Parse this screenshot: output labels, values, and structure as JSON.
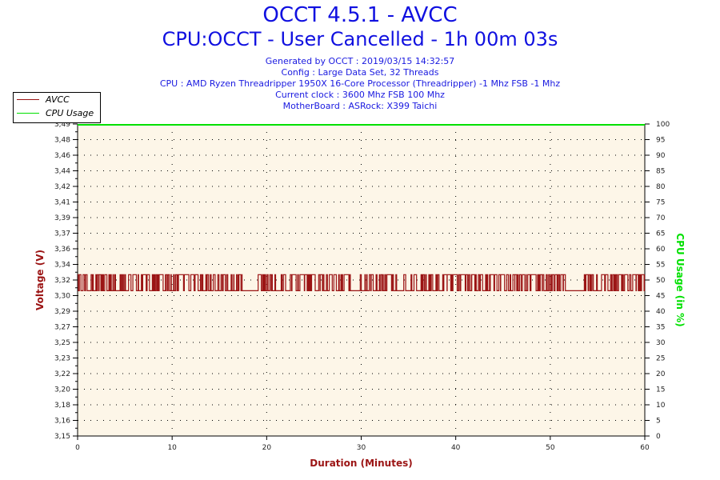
{
  "header": {
    "title": "OCCT 4.5.1 - AVCC",
    "subtitle": "CPU:OCCT - User Cancelled - 1h 00m 03s",
    "info": [
      "Generated by OCCT : 2019/03/15 14:32:57",
      "Config : Large Data Set, 32 Threads",
      "CPU : AMD Ryzen Threadripper 1950X 16-Core Processor (Threadripper) -1 Mhz FSB -1 Mhz",
      "Current clock : 3600 Mhz FSB 100 Mhz",
      "MotherBoard : ASRock: X399 Taichi"
    ]
  },
  "chart_data": {
    "type": "line",
    "xlabel": "Duration (Minutes)",
    "ylabel": "Voltage (V)",
    "y2label": "CPU Usage (in %)",
    "xlim": [
      0,
      60
    ],
    "ylim": [
      3.15,
      3.5
    ],
    "y2lim": [
      0,
      100
    ],
    "x_ticks": [
      "0",
      "10",
      "20",
      "30",
      "40",
      "50",
      "60"
    ],
    "y_ticks": [
      "3,15",
      "3,16",
      "3,18",
      "3,20",
      "3,22",
      "3,23",
      "3,25",
      "3,27",
      "3,29",
      "3,30",
      "3,32",
      "3,34",
      "3,36",
      "3,37",
      "3,39",
      "3,41",
      "3,42",
      "3,44",
      "3,46",
      "3,48",
      "3,49"
    ],
    "y2_ticks": [
      "0",
      "5",
      "10",
      "15",
      "20",
      "25",
      "30",
      "35",
      "40",
      "45",
      "50",
      "55",
      "60",
      "65",
      "70",
      "75",
      "80",
      "85",
      "90",
      "95",
      "100"
    ],
    "grid": true,
    "legend": "top-left",
    "series": [
      {
        "name": "AVCC",
        "color": "#9b1414",
        "high": 3.331,
        "low": 3.313,
        "toggling_segments": [
          [
            0,
            7.6
          ],
          [
            7.9,
            17.4
          ],
          [
            19.1,
            22.0
          ],
          [
            22.5,
            28.9
          ],
          [
            29.9,
            33.8
          ],
          [
            34.5,
            51.6
          ],
          [
            53.6,
            60
          ]
        ],
        "flat_low_segments": [
          [
            7.6,
            7.9
          ],
          [
            17.4,
            19.1
          ],
          [
            22.0,
            22.5
          ],
          [
            28.9,
            29.9
          ],
          [
            33.8,
            34.5
          ],
          [
            51.6,
            53.6
          ]
        ]
      },
      {
        "name": "CPU Usage",
        "color": "#00e000",
        "axis": "right",
        "values_constant": 100
      }
    ]
  }
}
